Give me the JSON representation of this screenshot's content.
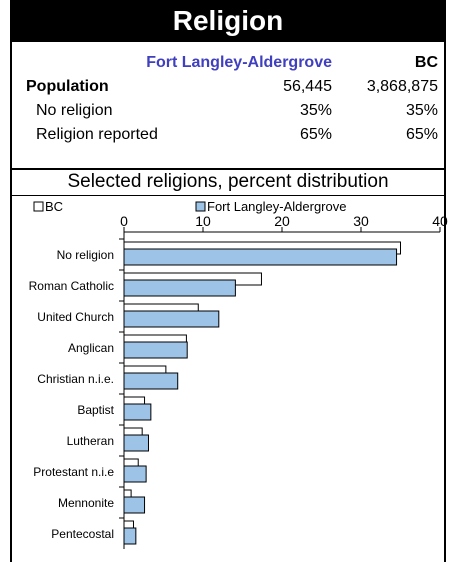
{
  "title": "Religion",
  "stats": {
    "headers": {
      "region": "Fort Langley-Aldergrove",
      "province": "BC"
    },
    "rows": [
      {
        "label": "Population",
        "region": "56,445",
        "province": "3,868,875",
        "bold": true
      },
      {
        "label": "No religion",
        "region": "35%",
        "province": "35%",
        "bold": false
      },
      {
        "label": "Religion reported",
        "region": "65%",
        "province": "65%",
        "bold": false
      }
    ]
  },
  "section_title": "Selected religions, percent distribution",
  "colors": {
    "bc_fill": "#ffffff",
    "region_fill": "#9dc3e6",
    "region_header": "#3f3fbf",
    "border": "#000000"
  },
  "chart_data": {
    "type": "bar",
    "orientation": "horizontal",
    "categories": [
      "No religion",
      "Roman Catholic",
      "United Church",
      "Anglican",
      "Christian n.i.e.",
      "Baptist",
      "Lutheran",
      "Protestant n.i.e",
      "Mennonite",
      "Pentecostal"
    ],
    "series": [
      {
        "name": "BC",
        "values": [
          35,
          17.4,
          9.4,
          7.9,
          5.3,
          2.6,
          2.3,
          1.8,
          0.9,
          1.2
        ]
      },
      {
        "name": "Fort Langley-Aldergrove",
        "values": [
          34.5,
          14.1,
          12.0,
          8.0,
          6.8,
          3.4,
          3.1,
          2.8,
          2.6,
          1.5
        ]
      }
    ],
    "xlim": [
      0,
      40
    ],
    "xticks": [
      0,
      10,
      20,
      30,
      40
    ],
    "legend_position": "top"
  }
}
